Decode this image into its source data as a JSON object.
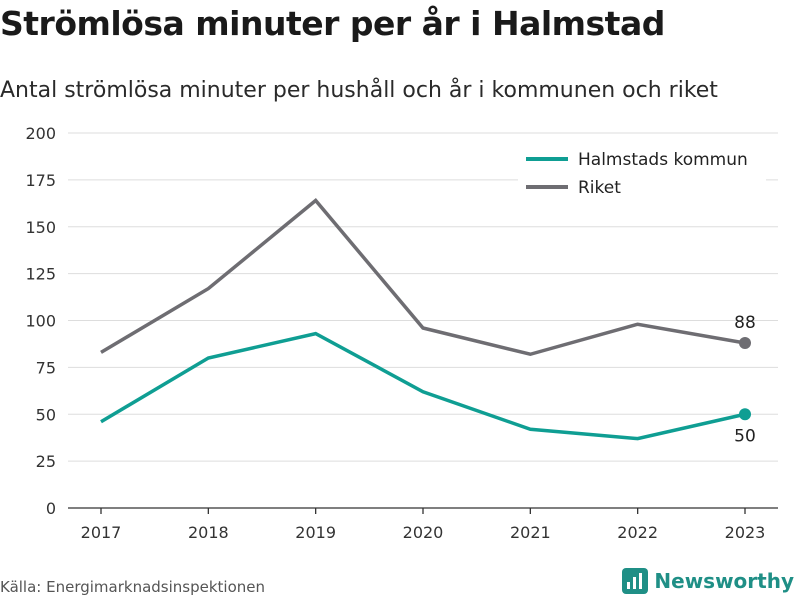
{
  "title": "Strömlösa minuter per år i Halmstad",
  "subtitle": "Antal strömlösa minuter per hushåll och år i kommunen och riket",
  "source": "Källa: Energimarknadsinspektionen",
  "brand": {
    "name": "Newsworthy",
    "icon": "bar-chart-logo-icon"
  },
  "colors": {
    "halmstad": "#0f9e93",
    "riket": "#6e6d72",
    "grid": "#dddddd",
    "axis": "#333333",
    "brand": "#1f8f86"
  },
  "chart_data": {
    "type": "line",
    "x": [
      "2017",
      "2018",
      "2019",
      "2020",
      "2021",
      "2022",
      "2023"
    ],
    "ylim": [
      0,
      200
    ],
    "yticks": [
      0,
      25,
      50,
      75,
      100,
      125,
      150,
      175,
      200
    ],
    "grid": true,
    "legend_position": "top-right",
    "series": [
      {
        "name": "Halmstads kommun",
        "color": "#0f9e93",
        "values": [
          46,
          80,
          93,
          62,
          42,
          37,
          50
        ],
        "end_label": "50"
      },
      {
        "name": "Riket",
        "color": "#6e6d72",
        "values": [
          83,
          117,
          164,
          96,
          82,
          98,
          88
        ],
        "end_label": "88"
      }
    ]
  }
}
